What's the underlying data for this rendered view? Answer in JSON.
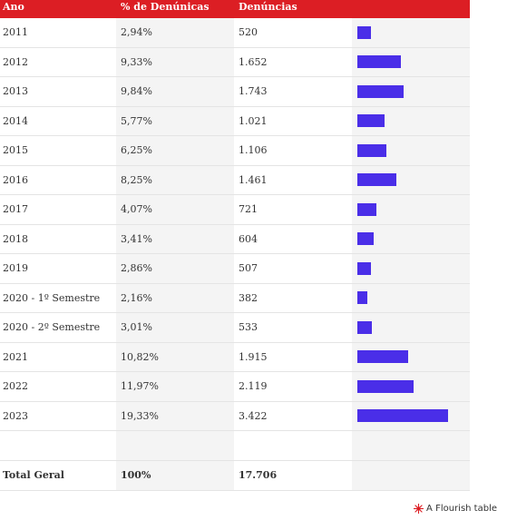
{
  "header": {
    "col1": "Ano",
    "col2": "% de Denúnicas",
    "col3": "Denúncias",
    "col4": ""
  },
  "rows": [
    {
      "ano": "2011",
      "pct": "2,94%",
      "den": "520",
      "bar": 520
    },
    {
      "ano": "2012",
      "pct": "9,33%",
      "den": "1.652",
      "bar": 1652
    },
    {
      "ano": "2013",
      "pct": "9,84%",
      "den": "1.743",
      "bar": 1743
    },
    {
      "ano": "2014",
      "pct": "5,77%",
      "den": "1.021",
      "bar": 1021
    },
    {
      "ano": "2015",
      "pct": "6,25%",
      "den": "1.106",
      "bar": 1106
    },
    {
      "ano": "2016",
      "pct": "8,25%",
      "den": "1.461",
      "bar": 1461
    },
    {
      "ano": "2017",
      "pct": "4,07%",
      "den": "721",
      "bar": 721
    },
    {
      "ano": "2018",
      "pct": "3,41%",
      "den": "604",
      "bar": 604
    },
    {
      "ano": "2019",
      "pct": "2,86%",
      "den": "507",
      "bar": 507
    },
    {
      "ano": "2020 - 1º Semestre",
      "pct": "2,16%",
      "den": "382",
      "bar": 382
    },
    {
      "ano": "2020 - 2º Semestre",
      "pct": "3,01%",
      "den": "533",
      "bar": 533
    },
    {
      "ano": "2021",
      "pct": "10,82%",
      "den": "1.915",
      "bar": 1915
    },
    {
      "ano": "2022",
      "pct": "11,97%",
      "den": "2.119",
      "bar": 2119
    },
    {
      "ano": "2023",
      "pct": "19,33%",
      "den": "3.422",
      "bar": 3422
    },
    {
      "ano": "",
      "pct": "",
      "den": "",
      "bar": null
    }
  ],
  "total": {
    "ano": "Total Geral",
    "pct": "100%",
    "den": "17.706"
  },
  "bar_max": 3422,
  "colors": {
    "header": "#dc1e24",
    "bar": "#4a2ee8"
  },
  "credit": {
    "text": "A Flourish table",
    "icon": "flourish-logo-icon"
  }
}
